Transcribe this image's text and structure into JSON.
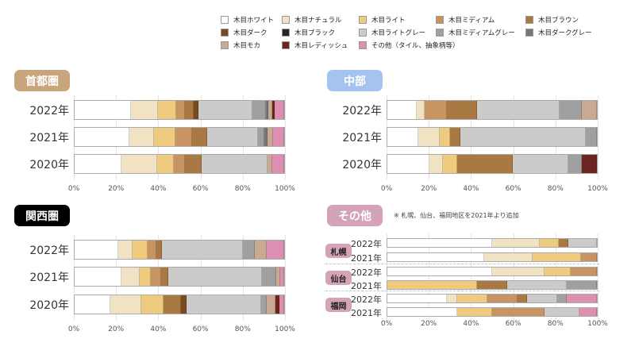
{
  "chart_data": {
    "type": "bar",
    "orientation": "horizontal-stacked-100",
    "legend": {
      "position": "top-right",
      "entries": [
        "木目ホワイト",
        "木目ナチュラル",
        "木目ライト",
        "木目ミディアム",
        "木目ブラウン",
        "木目ダーク",
        "木目ブラック",
        "木目ライトグレー",
        "木目ミディアムグレー",
        "木目ダークグレー",
        "木目モカ",
        "木目レディッシュ",
        "その他（タイル、抽象柄等）"
      ]
    },
    "colors": [
      "#ffffff",
      "#f1e2c4",
      "#eecb7e",
      "#c99464",
      "#a87942",
      "#7a4b1f",
      "#2a2524",
      "#cbcbcb",
      "#a0a0a0",
      "#777777",
      "#c8a992",
      "#6e2420",
      "#dc8fb0"
    ],
    "xticks": [
      "0%",
      "20%",
      "40%",
      "60%",
      "80%",
      "100%"
    ],
    "xlim": [
      0,
      100
    ],
    "panels": [
      {
        "title": "首都圏",
        "badge_color": "#c8a57d",
        "rows": [
          {
            "label": "2022年",
            "values": [
              26.8,
              13.1,
              8.5,
              4.4,
              4.1,
              2.3,
              0,
              25.5,
              6.5,
              1.3,
              2.0,
              1.1,
              4.4
            ]
          },
          {
            "label": "2021年",
            "values": [
              26.0,
              12.0,
              10.1,
              7.8,
              7.2,
              0,
              0,
              24.5,
              3.1,
              1.3,
              2.9,
              0,
              5.1
            ]
          },
          {
            "label": "2020年",
            "values": [
              22.4,
              17.1,
              7.9,
              5.2,
              8.1,
              0,
              0,
              31.3,
              0,
              0,
              2.5,
              0,
              5.5
            ]
          }
        ]
      },
      {
        "title": "中部",
        "badge_color": "#a4c3ee",
        "rows": [
          {
            "label": "2022年",
            "values": [
              14.1,
              3.8,
              0,
              10.5,
              14.3,
              0,
              0,
              39.4,
              10.8,
              0,
              7.1,
              0,
              0
            ]
          },
          {
            "label": "2021年",
            "values": [
              14.9,
              10.0,
              4.9,
              0,
              5.1,
              0,
              0,
              59.8,
              5.3,
              0,
              0,
              0,
              0
            ]
          },
          {
            "label": "2020年",
            "values": [
              19.9,
              6.6,
              6.8,
              0,
              26.6,
              0,
              0,
              26.6,
              6.5,
              0,
              0,
              7.0,
              0
            ]
          }
        ]
      },
      {
        "title": "関西圏",
        "badge_color": "#000000",
        "rows": [
          {
            "label": "2022年",
            "values": [
              20.8,
              7.0,
              7.0,
              4.1,
              2.9,
              0,
              0,
              38.6,
              5.8,
              0,
              5.5,
              0,
              8.3
            ]
          },
          {
            "label": "2021年",
            "values": [
              22.4,
              8.6,
              5.2,
              5.2,
              3.4,
              0,
              0,
              44.7,
              6.9,
              0,
              1.8,
              0,
              1.8
            ]
          },
          {
            "label": "2020年",
            "values": [
              17.1,
              14.7,
              10.8,
              0,
              8.3,
              2.4,
              0,
              35.8,
              2.5,
              0,
              4.1,
              2.2,
              2.1
            ]
          }
        ]
      },
      {
        "title": "その他",
        "badge_color": "#d4a3b8",
        "note": "※ 札幌、仙台、福岡地区を2021年より追加",
        "groups": [
          {
            "name": "札幌",
            "rows": [
              {
                "label": "2022年",
                "values": [
                  49.9,
                  22.8,
                  9.0,
                  0,
                  4.5,
                  0,
                  0,
                  13.8,
                  0,
                  0,
                  0,
                  0,
                  0
                ]
              },
              {
                "label": "2021年",
                "values": [
                  46.1,
                  23.1,
                  23.2,
                  7.6,
                  0,
                  0,
                  0,
                  0,
                  0,
                  0,
                  0,
                  0,
                  0
                ]
              }
            ]
          },
          {
            "name": "仙台",
            "rows": [
              {
                "label": "2022年",
                "values": [
                  49.9,
                  25.1,
                  12.5,
                  12.5,
                  0,
                  0,
                  0,
                  0,
                  0,
                  0,
                  0,
                  0,
                  0
                ]
              },
              {
                "label": "2021年",
                "values": [
                  0,
                  0,
                  42.7,
                  0,
                  14.4,
                  0,
                  0,
                  28.5,
                  14.4,
                  0,
                  0,
                  0,
                  0
                ]
              }
            ]
          },
          {
            "name": "福岡",
            "rows": [
              {
                "label": "2022年",
                "values": [
                  28.5,
                  4.7,
                  14.5,
                  14.4,
                  4.6,
                  0,
                  0,
                  14.2,
                  4.8,
                  0,
                  0,
                  0,
                  14.3
                ]
              },
              {
                "label": "2021年",
                "values": [
                  33.3,
                  0,
                  16.6,
                  25.1,
                  0,
                  0,
                  0,
                  16.6,
                  0,
                  0,
                  0,
                  0,
                  8.4
                ]
              }
            ]
          }
        ]
      }
    ]
  }
}
